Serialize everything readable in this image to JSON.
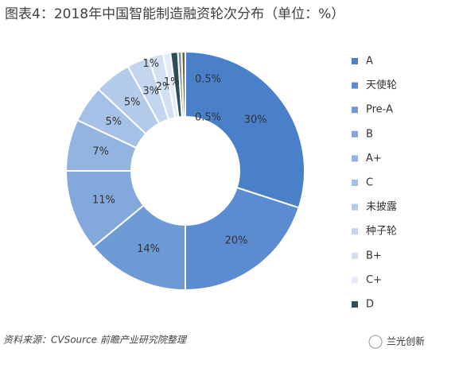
{
  "chart_data": {
    "type": "donut",
    "title": "图表4：2018年中国智能制造融资轮次分布（单位：%）",
    "categories": [
      "A",
      "天使轮",
      "Pre-A",
      "B",
      "A+",
      "C",
      "未披露",
      "种子轮",
      "B+",
      "C+",
      "D",
      null,
      null
    ],
    "values": [
      30,
      20,
      14,
      11,
      7,
      5,
      5,
      3,
      2,
      1,
      1,
      0.5,
      0.5
    ],
    "value_labels": [
      "30%",
      "20%",
      "14%",
      "11%",
      "7%",
      "5%",
      "5%",
      "3%",
      "2%",
      "1%",
      "1%",
      "0.5%",
      "0.5%"
    ],
    "colors": [
      "#4a7fc9",
      "#5b8bd0",
      "#6e9ad6",
      "#82a8dc",
      "#93b4e1",
      "#a6c1e7",
      "#b4cbea",
      "#c4d6ef",
      "#d3e0f3",
      "#e2ebf7",
      "#2e4f55",
      "#7d8a8c",
      "#5e6b3a"
    ],
    "source": "资料来源：CVSource 前瞻产业研究院整理",
    "watermark": "兰光创新"
  }
}
